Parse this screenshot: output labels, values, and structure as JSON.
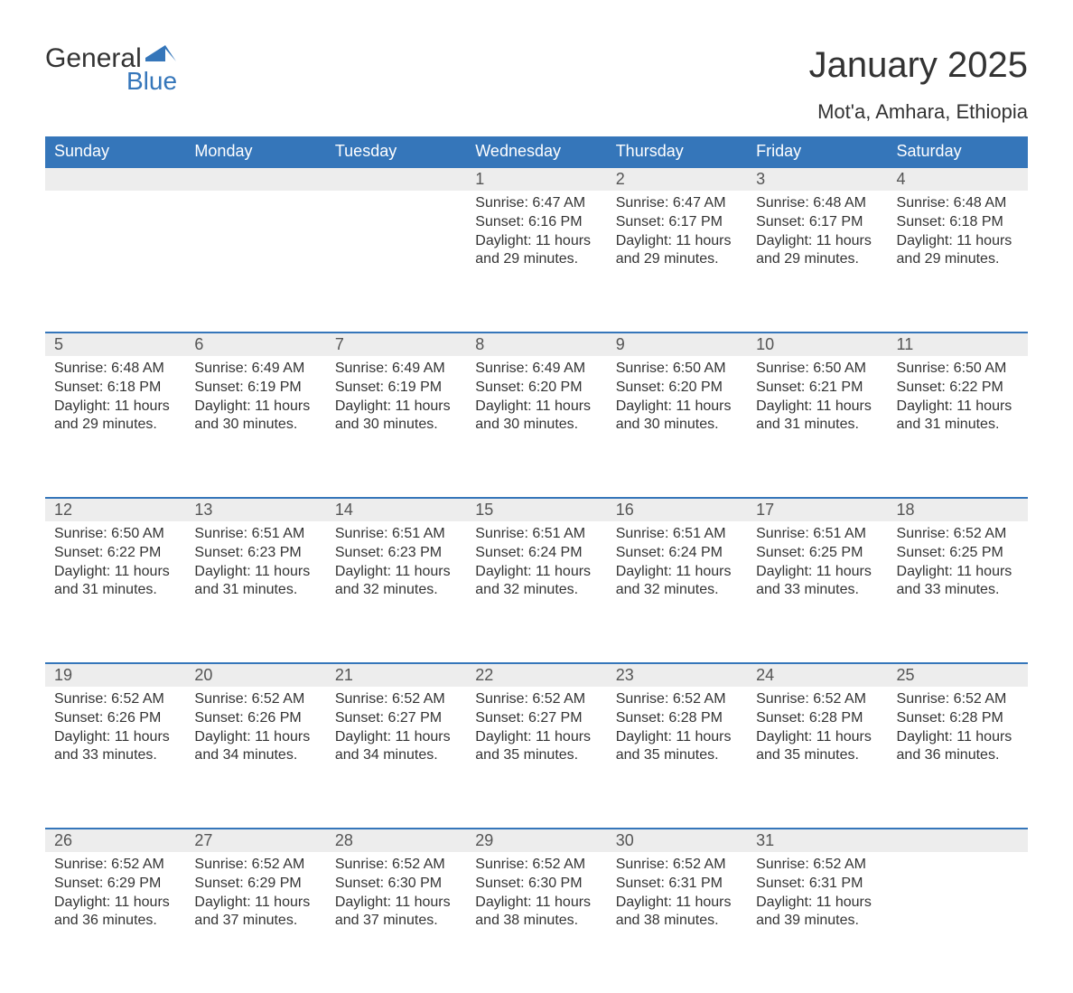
{
  "logo": {
    "text1": "General",
    "text2": "Blue",
    "arrow_color": "#3576ba"
  },
  "title": "January 2025",
  "location": "Mot'a, Amhara, Ethiopia",
  "colors": {
    "header_bg": "#3576ba",
    "header_text": "#ffffff",
    "daynum_bg": "#ededed",
    "border": "#3576ba",
    "body_text": "#333333"
  },
  "layout": {
    "columns": 7,
    "first_day_index": 3,
    "days_in_month": 31
  },
  "day_headers": [
    "Sunday",
    "Monday",
    "Tuesday",
    "Wednesday",
    "Thursday",
    "Friday",
    "Saturday"
  ],
  "days": [
    {
      "n": 1,
      "sunrise": "6:47 AM",
      "sunset": "6:16 PM",
      "daylight": "11 hours and 29 minutes."
    },
    {
      "n": 2,
      "sunrise": "6:47 AM",
      "sunset": "6:17 PM",
      "daylight": "11 hours and 29 minutes."
    },
    {
      "n": 3,
      "sunrise": "6:48 AM",
      "sunset": "6:17 PM",
      "daylight": "11 hours and 29 minutes."
    },
    {
      "n": 4,
      "sunrise": "6:48 AM",
      "sunset": "6:18 PM",
      "daylight": "11 hours and 29 minutes."
    },
    {
      "n": 5,
      "sunrise": "6:48 AM",
      "sunset": "6:18 PM",
      "daylight": "11 hours and 29 minutes."
    },
    {
      "n": 6,
      "sunrise": "6:49 AM",
      "sunset": "6:19 PM",
      "daylight": "11 hours and 30 minutes."
    },
    {
      "n": 7,
      "sunrise": "6:49 AM",
      "sunset": "6:19 PM",
      "daylight": "11 hours and 30 minutes."
    },
    {
      "n": 8,
      "sunrise": "6:49 AM",
      "sunset": "6:20 PM",
      "daylight": "11 hours and 30 minutes."
    },
    {
      "n": 9,
      "sunrise": "6:50 AM",
      "sunset": "6:20 PM",
      "daylight": "11 hours and 30 minutes."
    },
    {
      "n": 10,
      "sunrise": "6:50 AM",
      "sunset": "6:21 PM",
      "daylight": "11 hours and 31 minutes."
    },
    {
      "n": 11,
      "sunrise": "6:50 AM",
      "sunset": "6:22 PM",
      "daylight": "11 hours and 31 minutes."
    },
    {
      "n": 12,
      "sunrise": "6:50 AM",
      "sunset": "6:22 PM",
      "daylight": "11 hours and 31 minutes."
    },
    {
      "n": 13,
      "sunrise": "6:51 AM",
      "sunset": "6:23 PM",
      "daylight": "11 hours and 31 minutes."
    },
    {
      "n": 14,
      "sunrise": "6:51 AM",
      "sunset": "6:23 PM",
      "daylight": "11 hours and 32 minutes."
    },
    {
      "n": 15,
      "sunrise": "6:51 AM",
      "sunset": "6:24 PM",
      "daylight": "11 hours and 32 minutes."
    },
    {
      "n": 16,
      "sunrise": "6:51 AM",
      "sunset": "6:24 PM",
      "daylight": "11 hours and 32 minutes."
    },
    {
      "n": 17,
      "sunrise": "6:51 AM",
      "sunset": "6:25 PM",
      "daylight": "11 hours and 33 minutes."
    },
    {
      "n": 18,
      "sunrise": "6:52 AM",
      "sunset": "6:25 PM",
      "daylight": "11 hours and 33 minutes."
    },
    {
      "n": 19,
      "sunrise": "6:52 AM",
      "sunset": "6:26 PM",
      "daylight": "11 hours and 33 minutes."
    },
    {
      "n": 20,
      "sunrise": "6:52 AM",
      "sunset": "6:26 PM",
      "daylight": "11 hours and 34 minutes."
    },
    {
      "n": 21,
      "sunrise": "6:52 AM",
      "sunset": "6:27 PM",
      "daylight": "11 hours and 34 minutes."
    },
    {
      "n": 22,
      "sunrise": "6:52 AM",
      "sunset": "6:27 PM",
      "daylight": "11 hours and 35 minutes."
    },
    {
      "n": 23,
      "sunrise": "6:52 AM",
      "sunset": "6:28 PM",
      "daylight": "11 hours and 35 minutes."
    },
    {
      "n": 24,
      "sunrise": "6:52 AM",
      "sunset": "6:28 PM",
      "daylight": "11 hours and 35 minutes."
    },
    {
      "n": 25,
      "sunrise": "6:52 AM",
      "sunset": "6:28 PM",
      "daylight": "11 hours and 36 minutes."
    },
    {
      "n": 26,
      "sunrise": "6:52 AM",
      "sunset": "6:29 PM",
      "daylight": "11 hours and 36 minutes."
    },
    {
      "n": 27,
      "sunrise": "6:52 AM",
      "sunset": "6:29 PM",
      "daylight": "11 hours and 37 minutes."
    },
    {
      "n": 28,
      "sunrise": "6:52 AM",
      "sunset": "6:30 PM",
      "daylight": "11 hours and 37 minutes."
    },
    {
      "n": 29,
      "sunrise": "6:52 AM",
      "sunset": "6:30 PM",
      "daylight": "11 hours and 38 minutes."
    },
    {
      "n": 30,
      "sunrise": "6:52 AM",
      "sunset": "6:31 PM",
      "daylight": "11 hours and 38 minutes."
    },
    {
      "n": 31,
      "sunrise": "6:52 AM",
      "sunset": "6:31 PM",
      "daylight": "11 hours and 39 minutes."
    }
  ],
  "labels": {
    "sunrise": "Sunrise:",
    "sunset": "Sunset:",
    "daylight": "Daylight:"
  }
}
